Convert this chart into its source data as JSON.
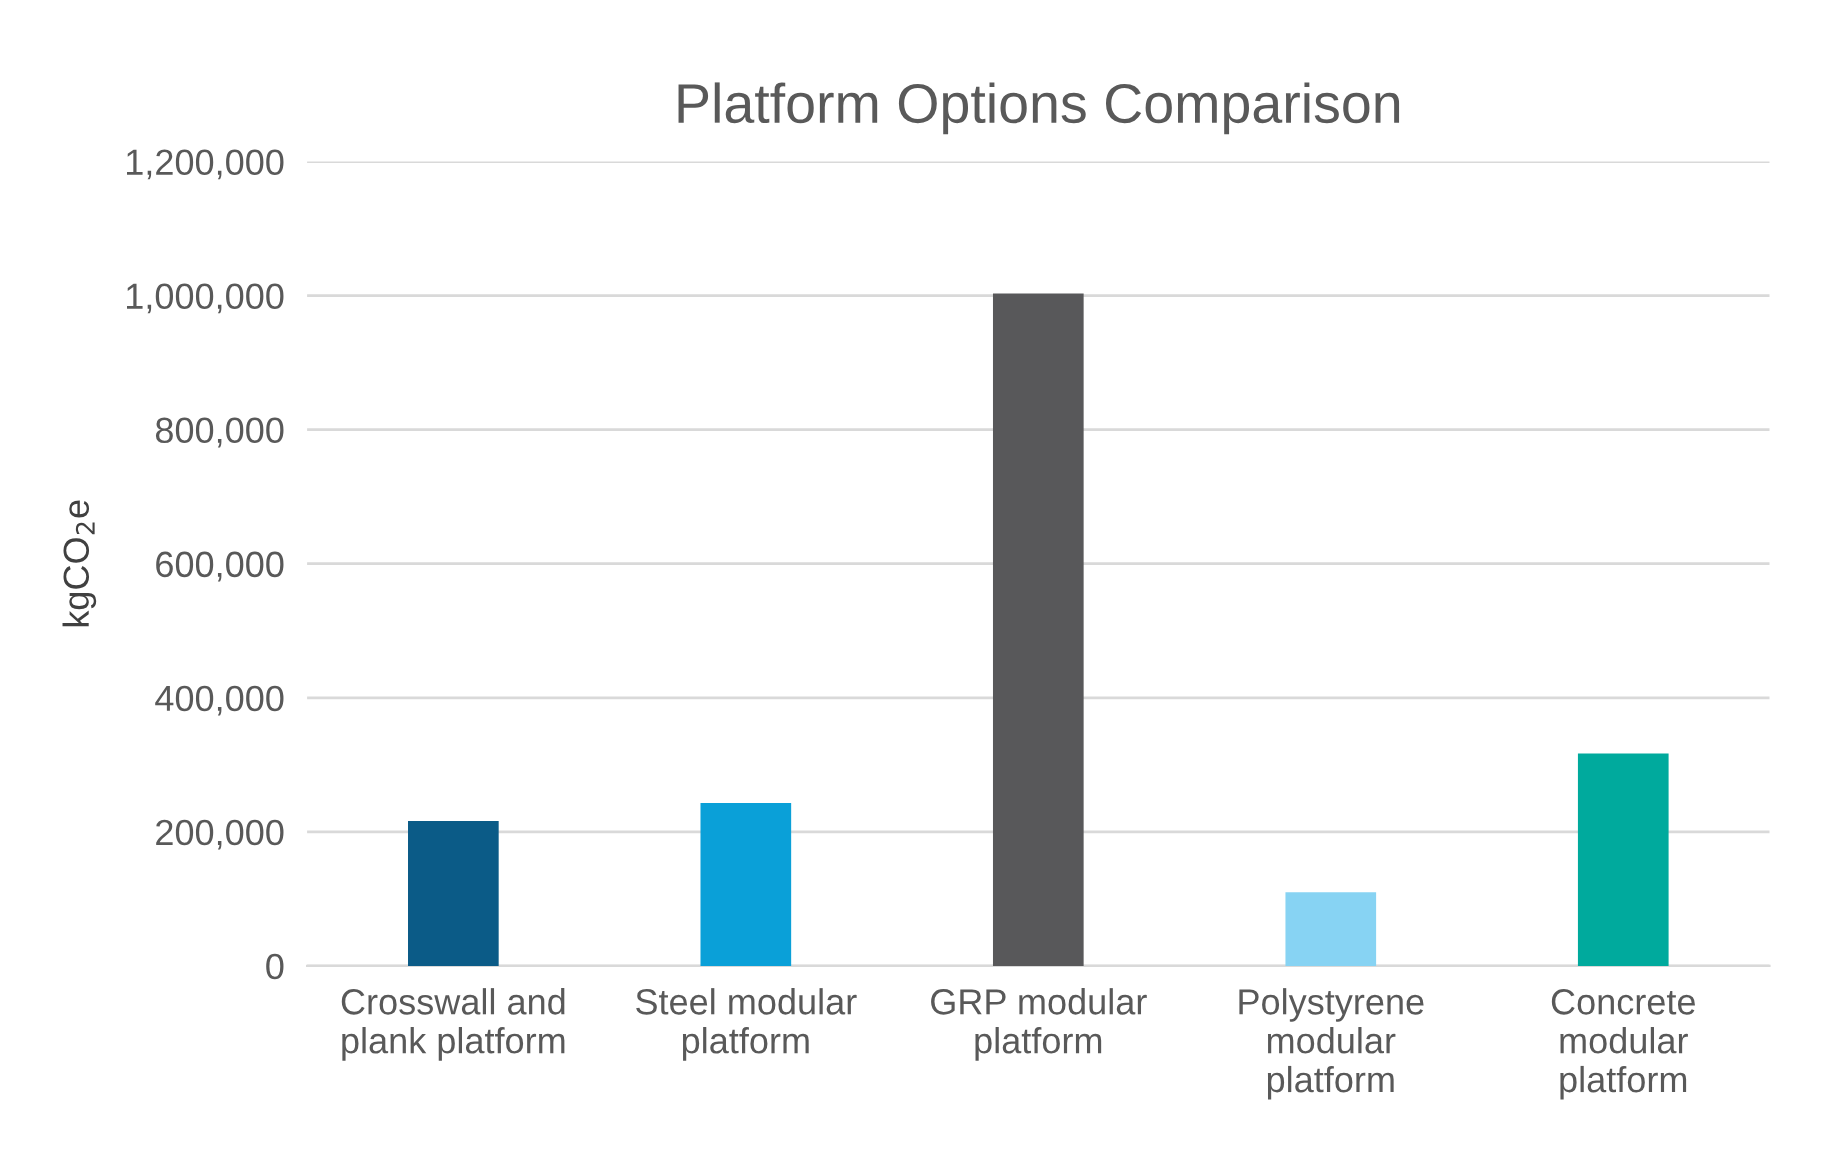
{
  "chart_data": {
    "type": "bar",
    "title": "Platform Options Comparison",
    "ylabel": "kgCO$_{2}$e",
    "categories": [
      "Crosswall and\nplank platform",
      "Steel modular\nplatform",
      "GRP modular\nplatform",
      "Polystyrene\nmodular\nplatform",
      "Concrete\nmodular\nplatform"
    ],
    "values": [
      216000,
      243000,
      1003000,
      110000,
      317000
    ],
    "colors": [
      "#0b5b87",
      "#0aa0d8",
      "#58585a",
      "#87d3f3",
      "#00aa9d"
    ],
    "ylim": [
      0,
      1200000
    ],
    "yticks": [
      {
        "value": 0,
        "label": "0"
      },
      {
        "value": 200000,
        "label": "200,000"
      },
      {
        "value": 400000,
        "label": "400,000"
      },
      {
        "value": 600000,
        "label": "600,000"
      },
      {
        "value": 800000,
        "label": "800,000"
      },
      {
        "value": 1000000,
        "label": "1,000,000"
      },
      {
        "value": 1200000,
        "label": "1,200,000"
      }
    ],
    "grid": "y",
    "legend": false
  }
}
